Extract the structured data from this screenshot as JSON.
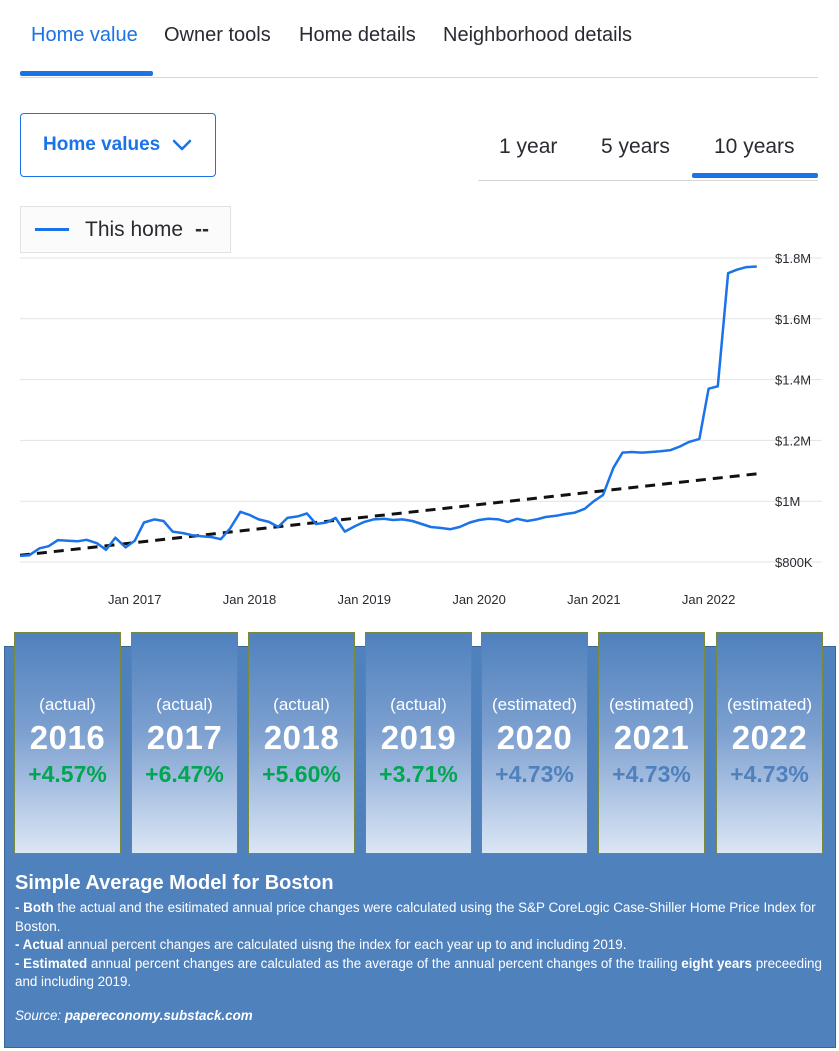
{
  "tabs": [
    {
      "label": "Home value",
      "active": true
    },
    {
      "label": "Owner tools",
      "active": false
    },
    {
      "label": "Home details",
      "active": false
    },
    {
      "label": "Neighborhood details",
      "active": false
    }
  ],
  "dropdown": {
    "label": "Home values",
    "icon": "chevron-down-icon"
  },
  "ranges": [
    {
      "label": "1 year",
      "active": false
    },
    {
      "label": "5 years",
      "active": false
    },
    {
      "label": "10 years",
      "active": true
    }
  ],
  "legend": {
    "label": "This home",
    "suffix": "--"
  },
  "colors": {
    "accent": "#1a73e8",
    "positive": "#00a651",
    "estimated": "#4f81bd",
    "panel": "#4f81bd"
  },
  "chart_data": {
    "type": "line",
    "x_ticks": [
      "Jan 2017",
      "Jan 2018",
      "Jan 2019",
      "Jan 2020",
      "Jan 2021",
      "Jan 2022"
    ],
    "y_ticks": [
      "$800K",
      "$1M",
      "$1.2M",
      "$1.4M",
      "$1.6M",
      "$1.8M"
    ],
    "ylim": [
      800000,
      1800000
    ],
    "xlim": [
      2016.0,
      2022.5
    ],
    "grid": true,
    "series": [
      {
        "name": "This home",
        "style": "solid",
        "x": [
          2016.0,
          2016.08,
          2016.17,
          2016.25,
          2016.33,
          2016.42,
          2016.5,
          2016.58,
          2016.67,
          2016.75,
          2016.83,
          2016.92,
          2017.0,
          2017.08,
          2017.17,
          2017.25,
          2017.33,
          2017.42,
          2017.5,
          2017.58,
          2017.67,
          2017.75,
          2017.83,
          2017.92,
          2018.0,
          2018.08,
          2018.17,
          2018.25,
          2018.33,
          2018.42,
          2018.5,
          2018.58,
          2018.67,
          2018.75,
          2018.83,
          2018.92,
          2019.0,
          2019.08,
          2019.17,
          2019.25,
          2019.33,
          2019.42,
          2019.5,
          2019.58,
          2019.67,
          2019.75,
          2019.83,
          2019.92,
          2020.0,
          2020.08,
          2020.17,
          2020.25,
          2020.33,
          2020.42,
          2020.5,
          2020.58,
          2020.67,
          2020.75,
          2020.83,
          2020.92,
          2021.0,
          2021.08,
          2021.17,
          2021.25,
          2021.33,
          2021.42,
          2021.5,
          2021.58,
          2021.67,
          2021.75,
          2021.83,
          2021.92,
          2022.0,
          2022.08,
          2022.17,
          2022.25,
          2022.33,
          2022.42
        ],
        "y": [
          820000,
          822000,
          845000,
          852000,
          872000,
          870000,
          868000,
          873000,
          862000,
          840000,
          880000,
          848000,
          870000,
          930000,
          940000,
          935000,
          900000,
          895000,
          888000,
          885000,
          882000,
          875000,
          910000,
          965000,
          955000,
          940000,
          932000,
          915000,
          945000,
          950000,
          960000,
          925000,
          930000,
          945000,
          900000,
          918000,
          932000,
          940000,
          942000,
          938000,
          940000,
          935000,
          925000,
          915000,
          912000,
          908000,
          915000,
          930000,
          938000,
          942000,
          940000,
          932000,
          942000,
          935000,
          940000,
          948000,
          952000,
          958000,
          962000,
          975000,
          1000000,
          1020000,
          1110000,
          1160000,
          1162000,
          1160000,
          1162000,
          1164000,
          1168000,
          1180000,
          1195000,
          1205000,
          1370000,
          1378000,
          1750000,
          1762000,
          1770000,
          1772000
        ]
      },
      {
        "name": "",
        "style": "dashed",
        "x": [
          2016.0,
          2022.42
        ],
        "y": [
          822000,
          1090000
        ]
      }
    ]
  },
  "cards": [
    {
      "kind": "(actual)",
      "year": "2016",
      "pct": "+4.57%",
      "estimated": false
    },
    {
      "kind": "(actual)",
      "year": "2017",
      "pct": "+6.47%",
      "estimated": false
    },
    {
      "kind": "(actual)",
      "year": "2018",
      "pct": "+5.60%",
      "estimated": false
    },
    {
      "kind": "(actual)",
      "year": "2019",
      "pct": "+3.71%",
      "estimated": false
    },
    {
      "kind": "(estimated)",
      "year": "2020",
      "pct": "+4.73%",
      "estimated": true
    },
    {
      "kind": "(estimated)",
      "year": "2021",
      "pct": "+4.73%",
      "estimated": true
    },
    {
      "kind": "(estimated)",
      "year": "2022",
      "pct": "+4.73%",
      "estimated": true
    }
  ],
  "note": {
    "title": "Simple Average Model for Boston",
    "line1_bold": "- Both",
    "line1_rest": " the actual and the esitimated annual price changes were calculated using the S&P CoreLogic Case-Shiller Home Price Index for Boston.",
    "line2_bold": "- Actual",
    "line2_rest": " annual percent changes are calculated uisng the index for each year up to and including 2019.",
    "line3_bold": "- Estimated",
    "line3_mid": " annual percent changes are calculated as the average of the annual percent changes of the trailing ",
    "line3_bold2": "eight years",
    "line3_end": " preceeding and including 2019.",
    "source_label": "Source: ",
    "source_value": "papereconomy.substack.com"
  }
}
